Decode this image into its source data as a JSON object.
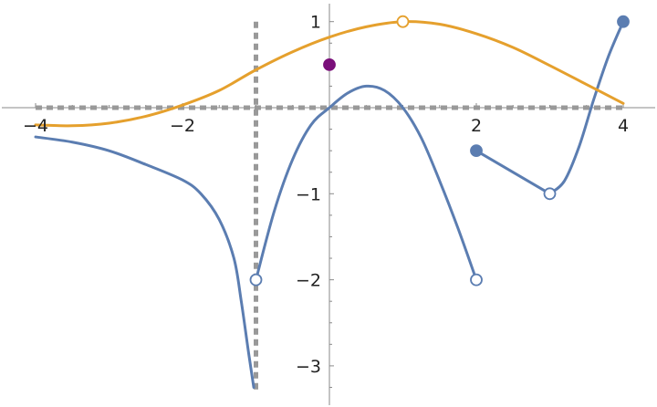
{
  "chart_data": {
    "type": "line",
    "title": "",
    "xlabel": "",
    "ylabel": "",
    "xlim": [
      -4.25,
      4.45
    ],
    "ylim": [
      -3.5,
      1.2
    ],
    "x_ticks": [
      {
        "value": -4,
        "label": "−4"
      },
      {
        "value": -2,
        "label": "−2"
      },
      {
        "value": 2,
        "label": "2"
      },
      {
        "value": 4,
        "label": "4"
      }
    ],
    "y_ticks": [
      {
        "value": -3,
        "label": "−3"
      },
      {
        "value": -2,
        "label": "−2"
      },
      {
        "value": -1,
        "label": "−1"
      },
      {
        "value": 1,
        "label": "1"
      }
    ],
    "colors": {
      "blue": "#5b7db1",
      "orange": "#e5a02d",
      "purple": "#7a0f7a",
      "asymptote": "#999999"
    },
    "series": [
      {
        "color": "blue",
        "points": [
          [
            -4.0,
            -0.34
          ],
          [
            -3.5,
            -0.4
          ],
          [
            -3.0,
            -0.5
          ],
          [
            -2.5,
            -0.66
          ],
          [
            -2.0,
            -0.84
          ],
          [
            -1.75,
            -1.0
          ],
          [
            -1.5,
            -1.3
          ],
          [
            -1.3,
            -1.75
          ],
          [
            -1.2,
            -2.25
          ],
          [
            -1.1,
            -2.85
          ],
          [
            -1.03,
            -3.25
          ]
        ]
      },
      {
        "color": "blue",
        "points": [
          [
            -1.0,
            -2.0
          ],
          [
            -0.75,
            -1.2
          ],
          [
            -0.5,
            -0.6
          ],
          [
            -0.25,
            -0.2
          ],
          [
            0.0,
            0.0
          ],
          [
            0.25,
            0.17
          ],
          [
            0.5,
            0.25
          ],
          [
            0.75,
            0.2
          ],
          [
            1.0,
            0.0
          ],
          [
            1.25,
            -0.35
          ],
          [
            1.5,
            -0.85
          ],
          [
            1.75,
            -1.4
          ],
          [
            2.0,
            -2.0
          ]
        ]
      },
      {
        "color": "blue",
        "points": [
          [
            2.0,
            -0.5
          ],
          [
            3.0,
            -1.0
          ]
        ]
      },
      {
        "color": "blue",
        "points": [
          [
            3.0,
            -1.0
          ],
          [
            3.2,
            -0.85
          ],
          [
            3.4,
            -0.45
          ],
          [
            3.6,
            0.1
          ],
          [
            3.8,
            0.6
          ],
          [
            4.0,
            1.0
          ]
        ]
      },
      {
        "color": "orange",
        "points": [
          [
            -4.0,
            -0.2
          ],
          [
            -3.5,
            -0.21
          ],
          [
            -3.0,
            -0.18
          ],
          [
            -2.5,
            -0.1
          ],
          [
            -2.0,
            0.03
          ],
          [
            -1.5,
            0.2
          ],
          [
            -1.0,
            0.44
          ],
          [
            -0.5,
            0.65
          ],
          [
            0.0,
            0.82
          ],
          [
            0.5,
            0.94
          ],
          [
            1.0,
            1.0
          ],
          [
            1.5,
            0.97
          ],
          [
            2.0,
            0.86
          ],
          [
            2.5,
            0.7
          ],
          [
            3.0,
            0.49
          ],
          [
            3.5,
            0.27
          ],
          [
            4.0,
            0.05
          ]
        ]
      }
    ],
    "markers": [
      {
        "x": -1.0,
        "y": -2.0,
        "color": "blue",
        "filled": false
      },
      {
        "x": 2.0,
        "y": -2.0,
        "color": "blue",
        "filled": false
      },
      {
        "x": 2.0,
        "y": -0.5,
        "color": "blue",
        "filled": true
      },
      {
        "x": 3.0,
        "y": -1.0,
        "color": "blue",
        "filled": false
      },
      {
        "x": 4.0,
        "y": 1.0,
        "color": "blue",
        "filled": true
      },
      {
        "x": 1.0,
        "y": 1.0,
        "color": "orange",
        "filled": false
      },
      {
        "x": 0.0,
        "y": 0.5,
        "color": "purple",
        "filled": true
      }
    ],
    "asymptotes": [
      {
        "orientation": "vertical",
        "value": -1.0,
        "range": [
          -3.3,
          1.0
        ]
      },
      {
        "orientation": "horizontal",
        "value": 0.0,
        "range": [
          -4.0,
          4.0
        ]
      }
    ],
    "grid": false,
    "legend": "none"
  }
}
